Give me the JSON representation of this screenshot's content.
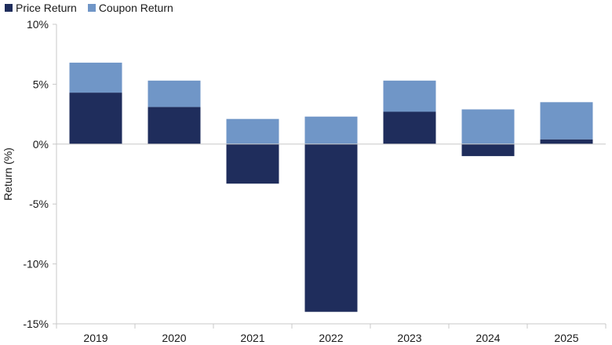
{
  "chart_data": {
    "type": "bar",
    "stacked": true,
    "categories": [
      "2019",
      "2020",
      "2021",
      "2022",
      "2023",
      "2024",
      "2025"
    ],
    "series": [
      {
        "name": "Price Return",
        "color": "#1f2d5c",
        "values": [
          4.3,
          3.1,
          -3.3,
          -14.0,
          2.7,
          -1.0,
          0.4
        ]
      },
      {
        "name": "Coupon Return",
        "color": "#7096c7",
        "values": [
          2.5,
          2.2,
          2.1,
          2.3,
          2.6,
          2.9,
          3.1
        ]
      }
    ],
    "ylabel": "Return (%)",
    "ylim": [
      -15,
      10
    ],
    "yticks": [
      10,
      5,
      0,
      -5,
      -10,
      -15
    ],
    "ytick_labels": [
      "10%",
      "5%",
      "0%",
      "-5%",
      "-10%",
      "-15%"
    ],
    "legend_position": "top-left",
    "grid": false
  }
}
